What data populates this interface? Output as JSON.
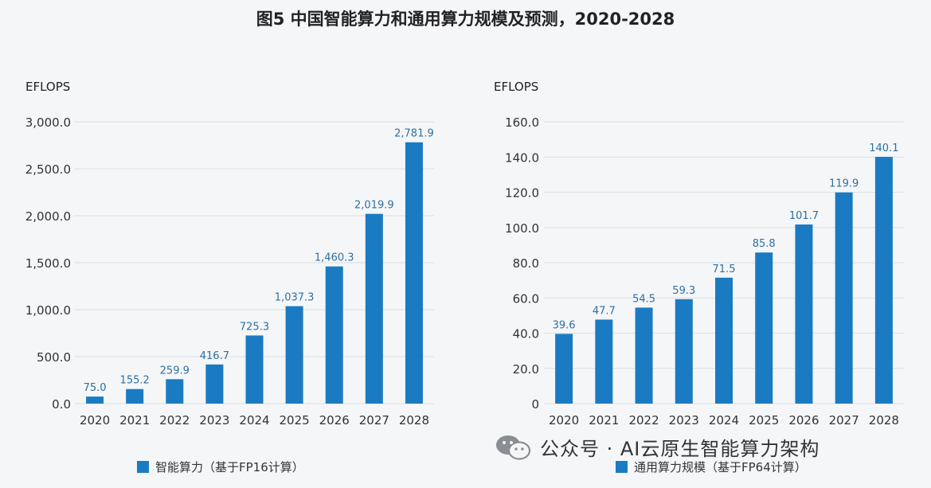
{
  "title": "图5 中国智能算力和通用算力规模及预测，2020-2028",
  "watermark": "公众号 · AI云原生智能算力架构",
  "colors": {
    "bar": "#1a7bc2",
    "grid": "#dcdfe3",
    "value_label": "#2e6fa3"
  },
  "chart_data": [
    {
      "type": "bar",
      "unit": "EFLOPS",
      "categories": [
        "2020",
        "2021",
        "2022",
        "2023",
        "2024",
        "2025",
        "2026",
        "2027",
        "2028"
      ],
      "values": [
        75.0,
        155.2,
        259.9,
        416.7,
        725.3,
        1037.3,
        1460.3,
        2019.9,
        2781.9
      ],
      "value_labels": [
        "75.0",
        "155.2",
        "259.9",
        "416.7",
        "725.3",
        "1,037.3",
        "1,460.3",
        "2,019.9",
        "2,781.9"
      ],
      "ylim": [
        0,
        3000
      ],
      "yticks": [
        0,
        500,
        1000,
        1500,
        2000,
        2500,
        3000
      ],
      "ytick_labels": [
        "0.0",
        "500.0",
        "1,000.0",
        "1,500.0",
        "2,000.0",
        "2,500.0",
        "3,000.0"
      ],
      "legend": "智能算力（基于FP16计算）",
      "grid": true
    },
    {
      "type": "bar",
      "unit": "EFLOPS",
      "categories": [
        "2020",
        "2021",
        "2022",
        "2023",
        "2024",
        "2025",
        "2026",
        "2027",
        "2028"
      ],
      "values": [
        39.6,
        47.7,
        54.5,
        59.3,
        71.5,
        85.8,
        101.7,
        119.9,
        140.1
      ],
      "value_labels": [
        "39.6",
        "47.7",
        "54.5",
        "59.3",
        "71.5",
        "85.8",
        "101.7",
        "119.9",
        "140.1"
      ],
      "ylim": [
        0,
        160
      ],
      "yticks": [
        0,
        20,
        40,
        60,
        80,
        100,
        120,
        140,
        160
      ],
      "ytick_labels": [
        "0",
        "20.0",
        "40.0",
        "60.0",
        "80.0",
        "100.0",
        "120.0",
        "140.0",
        "160.0"
      ],
      "legend": "通用算力规模（基于FP64计算）",
      "grid": true
    }
  ]
}
